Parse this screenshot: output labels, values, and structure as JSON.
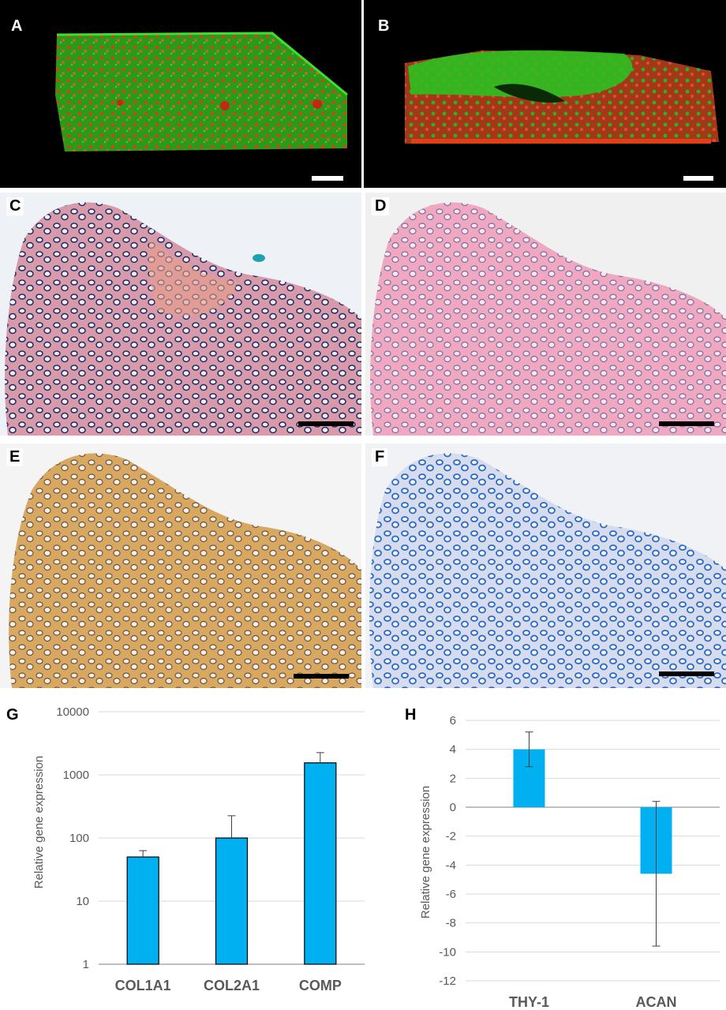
{
  "panels": {
    "A": "A",
    "B": "B",
    "C": "C",
    "D": "D",
    "E": "E",
    "F": "F",
    "G": "G",
    "H": "H"
  },
  "colors": {
    "bar": "#00b0f0",
    "fluor_green": "#22c41a",
    "fluor_red": "#e03410",
    "stain_he_pink": "#e8a0b0",
    "stain_dark_blue": "#1a2a6a",
    "stain_brown": "#c8903a",
    "stain_blue": "#3a78c8",
    "grid": "#d9d9d9",
    "axis_text": "#595959"
  },
  "chart_data": [
    {
      "type": "bar",
      "panel": "G",
      "categories": [
        "COL1A1",
        "COL2A1",
        "COMP"
      ],
      "values": [
        50,
        100,
        1550
      ],
      "error_plus": [
        13,
        125,
        700
      ],
      "ylabel": "Relative gene expression",
      "xlabel": "",
      "yscale": "log",
      "ylim": [
        1,
        10000
      ],
      "yticks": [
        "1",
        "10",
        "100",
        "1000",
        "10000"
      ],
      "grid": true,
      "legend": "none"
    },
    {
      "type": "bar",
      "panel": "H",
      "categories": [
        "THY-1",
        "ACAN"
      ],
      "values": [
        4.0,
        -4.6
      ],
      "error": [
        1.2,
        5.0
      ],
      "ylabel": "Relative gene expression",
      "xlabel": "",
      "yscale": "linear",
      "ylim": [
        -12,
        6
      ],
      "yticks": [
        "6",
        "4",
        "2",
        "0",
        "-2",
        "-4",
        "-6",
        "-8",
        "-10",
        "-12"
      ],
      "grid": true,
      "legend": "none"
    }
  ]
}
